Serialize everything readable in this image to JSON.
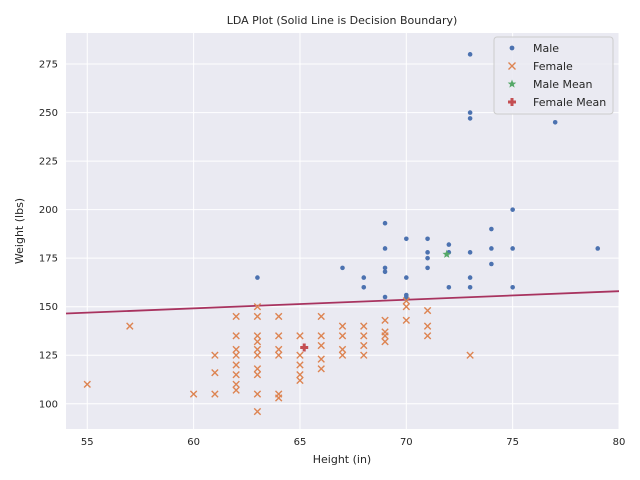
{
  "chart_data": {
    "type": "scatter",
    "title": "LDA Plot (Solid Line is Decision Boundary)",
    "xlabel": "Height (in)",
    "ylabel": "Weight (lbs)",
    "xlim": [
      54,
      80
    ],
    "ylim": [
      87,
      291
    ],
    "xticks": [
      55,
      60,
      65,
      70,
      75,
      80
    ],
    "yticks": [
      100,
      125,
      150,
      175,
      200,
      225,
      250,
      275
    ],
    "grid": true,
    "legend_position": "top-right",
    "colors": {
      "background": "#eaeaf2",
      "grid": "#ffffff",
      "male": "#4c72b0",
      "female": "#dd8452",
      "male_mean": "#55a868",
      "female_mean": "#c44e52",
      "boundary": "#a8335f"
    },
    "series": [
      {
        "name": "Male",
        "marker": "dot",
        "points": [
          [
            63,
            165
          ],
          [
            67,
            170
          ],
          [
            68,
            165
          ],
          [
            68,
            160
          ],
          [
            69,
            193
          ],
          [
            69,
            180
          ],
          [
            69,
            170
          ],
          [
            69,
            168
          ],
          [
            69,
            155
          ],
          [
            70,
            185
          ],
          [
            70,
            165
          ],
          [
            70,
            156
          ],
          [
            70,
            155
          ],
          [
            70,
            154
          ],
          [
            71,
            185
          ],
          [
            71,
            178
          ],
          [
            71,
            175
          ],
          [
            71,
            170
          ],
          [
            72,
            182
          ],
          [
            72,
            178
          ],
          [
            72,
            160
          ],
          [
            73,
            280
          ],
          [
            73,
            250
          ],
          [
            73,
            247
          ],
          [
            73,
            178
          ],
          [
            73,
            165
          ],
          [
            73,
            160
          ],
          [
            74,
            190
          ],
          [
            74,
            180
          ],
          [
            74,
            172
          ],
          [
            75,
            200
          ],
          [
            75,
            180
          ],
          [
            75,
            160
          ],
          [
            77,
            245
          ],
          [
            79,
            180
          ]
        ]
      },
      {
        "name": "Female",
        "marker": "x",
        "points": [
          [
            55,
            110
          ],
          [
            57,
            140
          ],
          [
            60,
            105
          ],
          [
            61,
            125
          ],
          [
            61,
            116
          ],
          [
            61,
            105
          ],
          [
            62,
            145
          ],
          [
            62,
            135
          ],
          [
            62,
            128
          ],
          [
            62,
            125
          ],
          [
            62,
            120
          ],
          [
            62,
            115
          ],
          [
            62,
            110
          ],
          [
            62,
            107
          ],
          [
            63,
            150
          ],
          [
            63,
            145
          ],
          [
            63,
            135
          ],
          [
            63,
            132
          ],
          [
            63,
            128
          ],
          [
            63,
            125
          ],
          [
            63,
            118
          ],
          [
            63,
            115
          ],
          [
            63,
            105
          ],
          [
            63,
            96
          ],
          [
            64,
            145
          ],
          [
            64,
            135
          ],
          [
            64,
            128
          ],
          [
            64,
            125
          ],
          [
            64,
            105
          ],
          [
            64,
            103
          ],
          [
            65,
            135
          ],
          [
            65,
            125
          ],
          [
            65,
            120
          ],
          [
            65,
            115
          ],
          [
            65,
            112
          ],
          [
            66,
            145
          ],
          [
            66,
            135
          ],
          [
            66,
            130
          ],
          [
            66,
            123
          ],
          [
            66,
            118
          ],
          [
            67,
            140
          ],
          [
            67,
            135
          ],
          [
            67,
            128
          ],
          [
            67,
            125
          ],
          [
            68,
            140
          ],
          [
            68,
            135
          ],
          [
            68,
            130
          ],
          [
            68,
            125
          ],
          [
            69,
            143
          ],
          [
            69,
            137
          ],
          [
            69,
            135
          ],
          [
            69,
            132
          ],
          [
            70,
            153
          ],
          [
            70,
            150
          ],
          [
            70,
            143
          ],
          [
            71,
            148
          ],
          [
            71,
            140
          ],
          [
            71,
            135
          ],
          [
            73,
            125
          ]
        ]
      },
      {
        "name": "Male Mean",
        "marker": "star",
        "points": [
          [
            71.9,
            177
          ]
        ]
      },
      {
        "name": "Female Mean",
        "marker": "plus",
        "points": [
          [
            65.2,
            129
          ]
        ]
      }
    ],
    "decision_boundary": {
      "x": [
        54,
        80
      ],
      "y": [
        146.5,
        158
      ]
    }
  }
}
